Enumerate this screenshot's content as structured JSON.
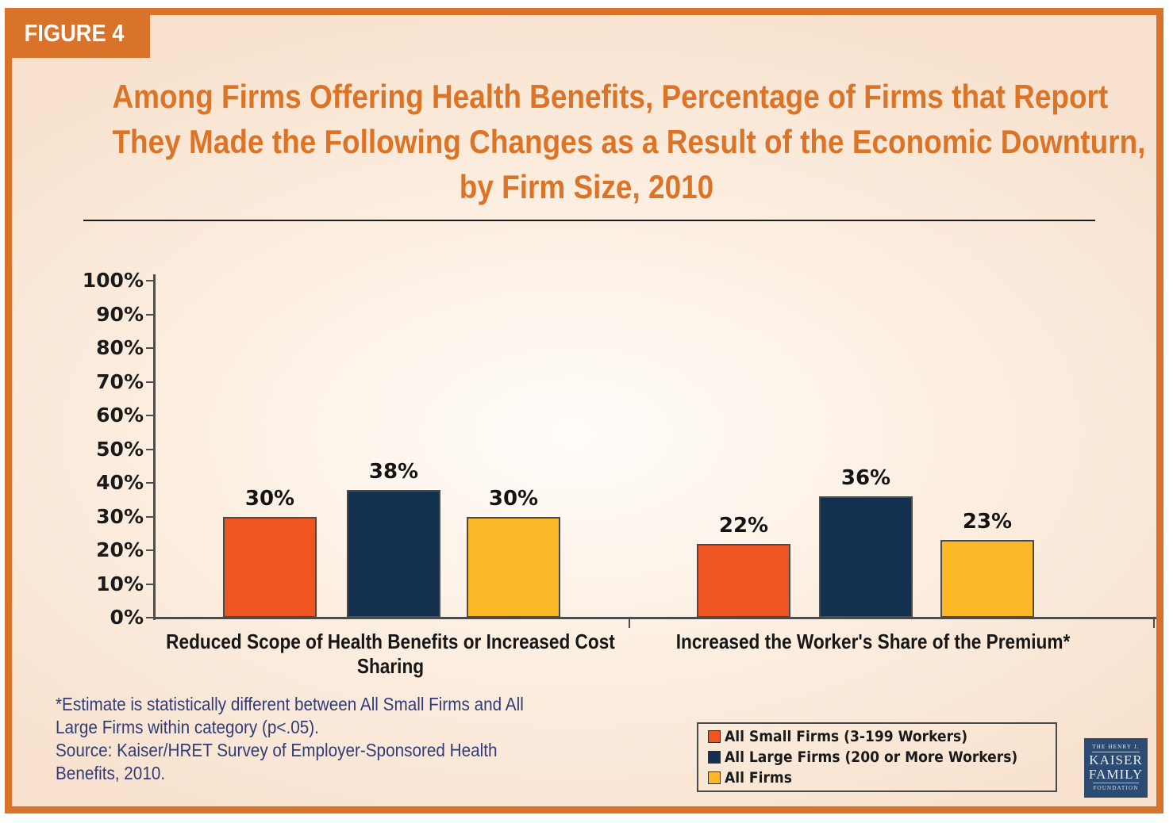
{
  "accent_color": "#D9732B",
  "figure_badge": "FIGURE 4",
  "title_lines": [
    "Among Firms Offering Health Benefits, Percentage of Firms that Report",
    "They Made the Following Changes as a Result of the Economic Downturn,",
    "by Firm Size, 2010"
  ],
  "chart_data": {
    "type": "bar",
    "title": "Among Firms Offering Health Benefits, Percentage of Firms that Report They Made the Following Changes as a Result of the Economic Downturn, by Firm Size, 2010",
    "categories": [
      "Reduced Scope of Health Benefits or Increased Cost Sharing",
      "Increased the Worker's Share of the Premium*"
    ],
    "series": [
      {
        "name": "All Small Firms (3-199 Workers)",
        "color": "#EF5423",
        "values": [
          30,
          22
        ]
      },
      {
        "name": "All Large Firms (200 or More Workers)",
        "color": "#14304F",
        "values": [
          38,
          36
        ]
      },
      {
        "name": "All Firms",
        "color": "#FBB725",
        "values": [
          30,
          23
        ]
      }
    ],
    "value_label_suffix": "%",
    "xlabel": "",
    "ylabel": "",
    "ylim": [
      0,
      100
    ],
    "ytick_step": 10,
    "ytick_suffix": "%",
    "grid": false,
    "legend_position": "bottom-right",
    "axis_color": "#4d4d4d",
    "bar_border_color": "#4a4a4a"
  },
  "footnote_lines": [
    "*Estimate is statistically different between All Small Firms and All",
    "Large Firms within category (p<.05).",
    "Source: Kaiser/HRET Survey of Employer-Sponsored Health",
    "Benefits, 2010."
  ],
  "footnote_color": "#303C78",
  "logo": {
    "line1": "THE HENRY J.",
    "line2": "KAISER",
    "line3": "FAMILY",
    "line4": "FOUNDATION",
    "bg_color": "#2B4B72"
  }
}
